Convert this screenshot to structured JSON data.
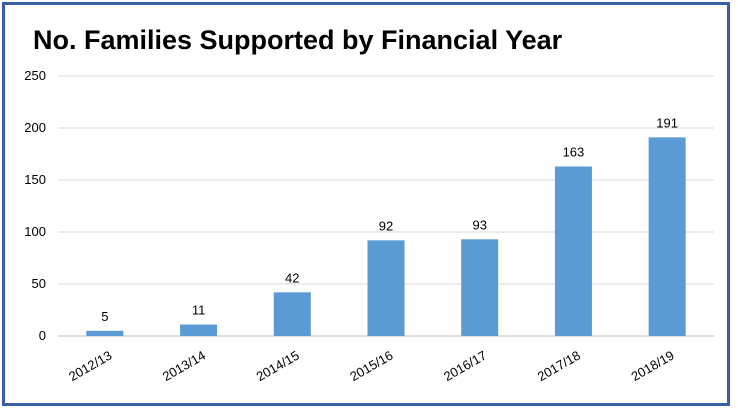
{
  "chart_data": {
    "type": "bar",
    "title": "No. Families Supported by Financial Year",
    "categories": [
      "2012/13",
      "2013/14",
      "2014/15",
      "2015/16",
      "2016/17",
      "2017/18",
      "2018/19"
    ],
    "values": [
      5,
      11,
      42,
      92,
      93,
      163,
      191
    ],
    "data_labels": [
      "5",
      "11",
      "42",
      "92",
      "93",
      "163",
      "191"
    ],
    "yticks": [
      "0",
      "50",
      "100",
      "150",
      "200",
      "250"
    ],
    "ylim": [
      0,
      250
    ],
    "ytick_step": 50,
    "grid": true,
    "legend": "none",
    "bar_color": "#5b9bd5",
    "grid_color": "#d9d9d9",
    "frame_color": "#3a5ea8"
  }
}
